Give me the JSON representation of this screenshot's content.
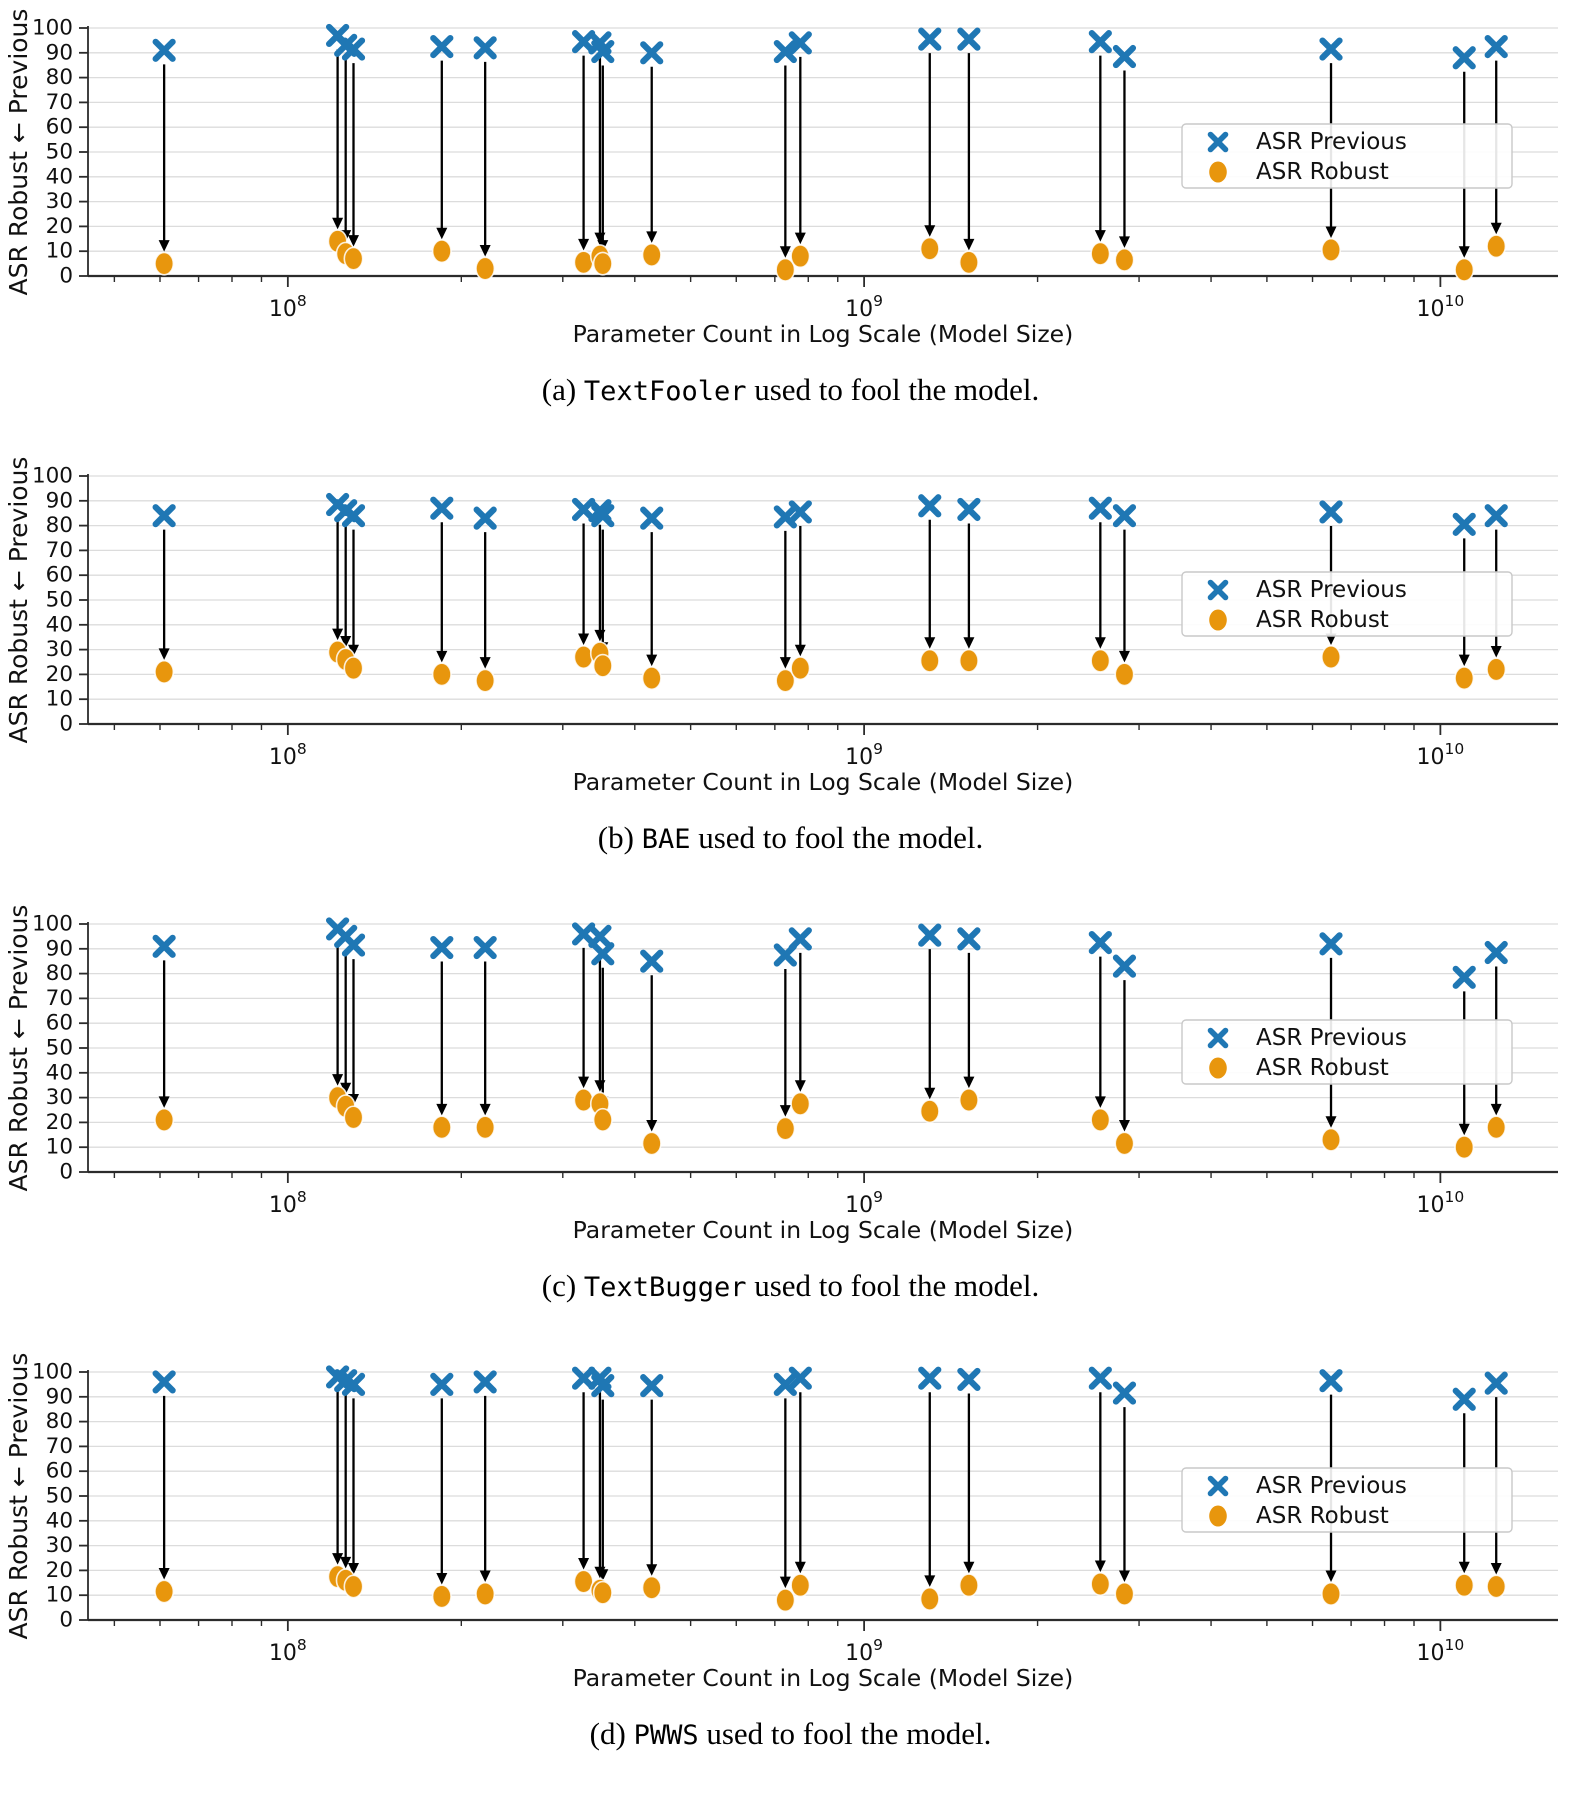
{
  "figure": {
    "background": "#ffffff"
  },
  "axes": {
    "xlabel": "Parameter Count in Log Scale (Model Size)",
    "ylabel": "ASR Robust ← Previous",
    "xscale": "log",
    "xlim": [
      45000000,
      16000000000
    ],
    "ylim": [
      0,
      100
    ],
    "ytick_step": 10,
    "yticks": [
      0,
      10,
      20,
      30,
      40,
      50,
      60,
      70,
      80,
      90,
      100
    ],
    "xtick_exponents": [
      8,
      9,
      10
    ],
    "xtick_base": "10",
    "grid": "horizontal"
  },
  "legend": {
    "position": "center-right",
    "items": [
      {
        "label": "ASR Previous",
        "marker": "x-icon",
        "color": "#1f77b4"
      },
      {
        "label": "ASR Robust",
        "marker": "circle-icon",
        "color": "#e8960d"
      }
    ]
  },
  "colors": {
    "previous": "#1f77b4",
    "robust": "#e8960d",
    "arrow": "#000000",
    "grid": "#dcdcdc",
    "spine": "#2b2b2b",
    "text": "#111111",
    "legend_border": "#c9c9c9"
  },
  "chart_data": [
    {
      "type": "scatter",
      "caption": {
        "index": "(a)",
        "attack": "TextFooler",
        "rest": "used to fool the model."
      },
      "xlabel": "Parameter Count in Log Scale (Model Size)",
      "ylabel": "ASR Robust ← Previous",
      "xscale": "log",
      "xlim": [
        45000000,
        16000000000
      ],
      "ylim": [
        0,
        100
      ],
      "legend": [
        "ASR Previous",
        "ASR Robust"
      ],
      "x": [
        61000000,
        122000000,
        126000000,
        130000000,
        185000000,
        220000000,
        326000000,
        348000000,
        352000000,
        428000000,
        730000000,
        775000000,
        1300000000,
        1520000000,
        2570000000,
        2830000000,
        6460000000,
        11000000000,
        12500000000
      ],
      "series": [
        {
          "name": "ASR Previous",
          "marker": "x",
          "values": [
            91,
            97,
            93,
            91.5,
            92.5,
            92,
            94.5,
            94,
            90.5,
            90,
            90.5,
            94,
            95.5,
            95.5,
            94.5,
            88.5,
            91.5,
            88,
            92.5
          ]
        },
        {
          "name": "ASR Robust",
          "marker": "circle",
          "values": [
            5,
            14,
            9,
            7,
            10,
            3,
            5.5,
            8,
            5,
            8.5,
            2.5,
            8,
            11,
            5.5,
            9,
            6.5,
            10.5,
            2.5,
            12
          ]
        }
      ]
    },
    {
      "type": "scatter",
      "caption": {
        "index": "(b)",
        "attack": "BAE",
        "rest": "used to fool the model."
      },
      "xlabel": "Parameter Count in Log Scale (Model Size)",
      "ylabel": "ASR Robust ← Previous",
      "xscale": "log",
      "xlim": [
        45000000,
        16000000000
      ],
      "ylim": [
        0,
        100
      ],
      "legend": [
        "ASR Previous",
        "ASR Robust"
      ],
      "x": [
        61000000,
        122000000,
        126000000,
        130000000,
        185000000,
        220000000,
        326000000,
        348000000,
        352000000,
        428000000,
        730000000,
        775000000,
        1300000000,
        1520000000,
        2570000000,
        2830000000,
        6460000000,
        11000000000,
        12500000000
      ],
      "series": [
        {
          "name": "ASR Previous",
          "marker": "x",
          "values": [
            84,
            88.5,
            86,
            84,
            87,
            83,
            86.5,
            86,
            84,
            83,
            83.5,
            85.5,
            88,
            86.5,
            87,
            84,
            85.5,
            80.5,
            84
          ]
        },
        {
          "name": "ASR Robust",
          "marker": "circle",
          "values": [
            21,
            29,
            26,
            22.5,
            20,
            17.5,
            27,
            28.5,
            23.5,
            18.5,
            17.5,
            22.5,
            25.5,
            25.5,
            25.5,
            20,
            27,
            18.5,
            22
          ]
        }
      ]
    },
    {
      "type": "scatter",
      "caption": {
        "index": "(c)",
        "attack": "TextBugger",
        "rest": "used to fool the model."
      },
      "xlabel": "Parameter Count in Log Scale (Model Size)",
      "ylabel": "ASR Robust ← Previous",
      "xscale": "log",
      "xlim": [
        45000000,
        16000000000
      ],
      "ylim": [
        0,
        100
      ],
      "legend": [
        "ASR Previous",
        "ASR Robust"
      ],
      "x": [
        61000000,
        122000000,
        126000000,
        130000000,
        185000000,
        220000000,
        326000000,
        348000000,
        352000000,
        428000000,
        730000000,
        775000000,
        1300000000,
        1520000000,
        2570000000,
        2830000000,
        6460000000,
        11000000000,
        12500000000
      ],
      "series": [
        {
          "name": "ASR Previous",
          "marker": "x",
          "values": [
            91,
            98,
            95,
            91.5,
            90.5,
            90.5,
            96,
            95,
            88,
            85,
            87.5,
            94,
            95.5,
            94,
            92.5,
            83,
            92,
            78.5,
            88.5
          ]
        },
        {
          "name": "ASR Robust",
          "marker": "circle",
          "values": [
            21,
            30,
            26.5,
            22,
            18,
            18,
            29,
            27.5,
            21,
            11.5,
            17.5,
            27.5,
            24.5,
            29,
            21,
            11.5,
            13,
            10,
            18
          ]
        }
      ]
    },
    {
      "type": "scatter",
      "caption": {
        "index": "(d)",
        "attack": "PWWS",
        "rest": "used to fool the model."
      },
      "xlabel": "Parameter Count in Log Scale (Model Size)",
      "ylabel": "ASR Robust ← Previous",
      "xscale": "log",
      "xlim": [
        45000000,
        16000000000
      ],
      "ylim": [
        0,
        100
      ],
      "legend": [
        "ASR Previous",
        "ASR Robust"
      ],
      "x": [
        61000000,
        122000000,
        126000000,
        130000000,
        185000000,
        220000000,
        326000000,
        348000000,
        352000000,
        428000000,
        730000000,
        775000000,
        1300000000,
        1520000000,
        2570000000,
        2830000000,
        6460000000,
        11000000000,
        12500000000
      ],
      "series": [
        {
          "name": "ASR Previous",
          "marker": "x",
          "values": [
            96,
            98,
            96.5,
            95,
            95,
            96,
            97.5,
            97.5,
            94.5,
            94.5,
            95,
            97.5,
            97.5,
            97,
            97.5,
            91.5,
            96.5,
            89,
            95.5
          ]
        },
        {
          "name": "ASR Robust",
          "marker": "circle",
          "values": [
            11.5,
            17.5,
            16,
            13.5,
            9.5,
            10.5,
            15.5,
            12,
            11,
            13,
            8,
            14,
            8.5,
            14,
            14.5,
            10.5,
            10.5,
            14,
            13.5
          ]
        }
      ]
    }
  ]
}
